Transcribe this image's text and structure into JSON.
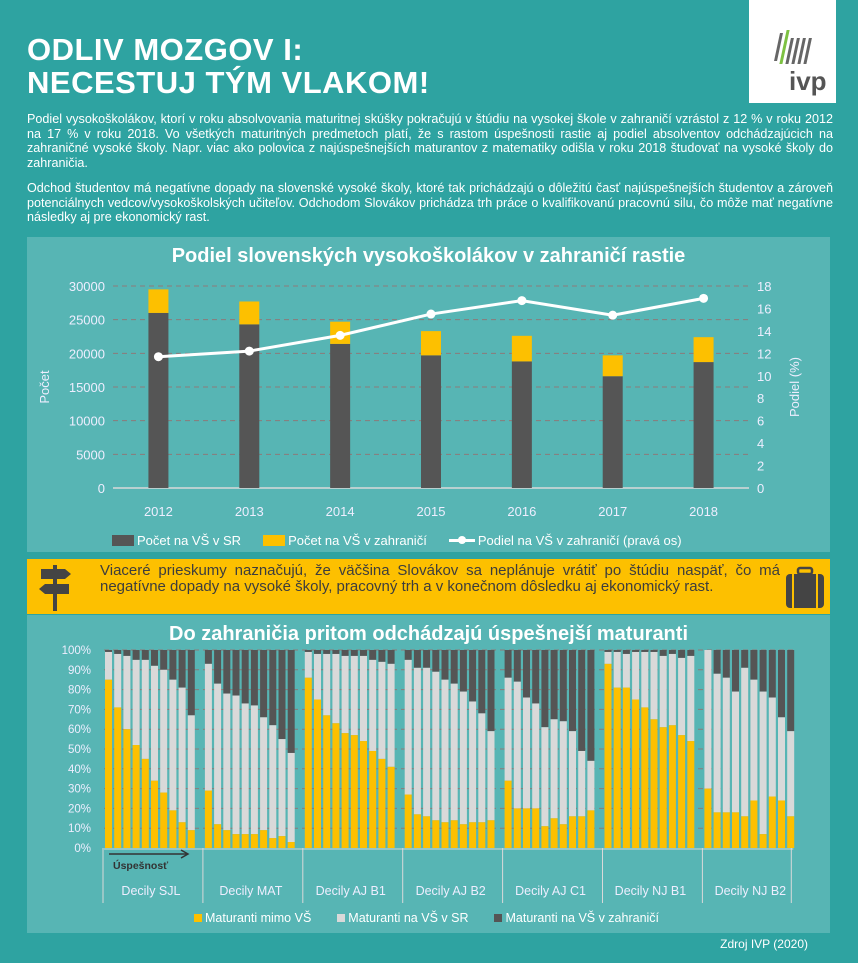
{
  "header": {
    "title_line1": "ODLIV MOZGOV I:",
    "title_line2": "NECESTUJ TÝM VLAKOM!",
    "logo_text": "ivp"
  },
  "intro": {
    "paragraph1": "Podiel vysokoškolákov, ktorí v roku absolvovania maturitnej skúšky pokračujú v štúdiu na vysokej škole v zahraničí vzrástol z 12 % v roku 2012 na 17 % v roku 2018. Vo všetkých maturitných predmetoch platí, že s rastom úspešnosti rastie aj podiel absolventov odchádzajúcich na zahraničné vysoké školy. Napr. viac ako polovica z najúspešnejších maturantov z matematiky odišla v roku 2018 študovať na vysoké školy do zahraničia.",
    "paragraph2": "Odchod študentov má negatívne dopady na slovenské vysoké školy, ktoré tak prichádzajú o dôležitú časť najúspešnejších študentov a zároveň potenciálnych vedcov/vysokoškolských učiteľov. Odchodom Slovákov prichádza trh práce o kvalifikovanú pracovnú silu, čo môže mať negatívne následky aj pre ekonomický rast."
  },
  "banner": {
    "text": "Viaceré prieskumy naznačujú, že väčšina Slovákov sa neplánuje vrátiť po štúdiu naspäť, čo má negatívne dopady na vysoké školy, pracovný trh a v konečnom dôsledku aj ekonomický rast."
  },
  "source": "Zdroj IVP (2020)",
  "colors": {
    "background": "#2ea3a1",
    "panel": "#57b5b4",
    "yellow": "#fdc000",
    "dark": "#555555",
    "light": "#d9d9d9",
    "grid": "#8c7a7a"
  },
  "chart_data": [
    {
      "type": "bar",
      "title": "Podiel slovenských vysokoškolákov v zahraničí rastie",
      "categories": [
        "2012",
        "2013",
        "2014",
        "2015",
        "2016",
        "2017",
        "2018"
      ],
      "ylabel": "Počet",
      "y2label": "Podiel (%)",
      "ylim": [
        0,
        30000
      ],
      "y2lim": [
        0,
        18
      ],
      "yticks": [
        "0",
        "5000",
        "10000",
        "15000",
        "20000",
        "25000",
        "30000"
      ],
      "y2ticks": [
        "0",
        "2",
        "4",
        "6",
        "8",
        "10",
        "12",
        "14",
        "16",
        "18"
      ],
      "grid": true,
      "legend_position": "bottom",
      "series": [
        {
          "name": "Počet na VŠ v SR",
          "kind": "stacked-bar",
          "values": [
            26000,
            24300,
            21400,
            19700,
            18800,
            16600,
            18700
          ]
        },
        {
          "name": "Počet na VŠ v zahraničí",
          "kind": "stacked-bar",
          "values": [
            3500,
            3400,
            3300,
            3600,
            3800,
            3100,
            3700
          ]
        },
        {
          "name": "Podiel na VŠ v zahraničí (pravá os)",
          "kind": "line",
          "axis": "right",
          "values": [
            11.7,
            12.2,
            13.6,
            15.5,
            16.7,
            15.4,
            16.9
          ]
        }
      ]
    },
    {
      "type": "bar",
      "title": "Do zahraničia pritom odchádzajú úspešnejší maturanti",
      "stacked_percent": true,
      "ylim": [
        0,
        100
      ],
      "yticks": [
        "0%",
        "10%",
        "20%",
        "30%",
        "40%",
        "50%",
        "60%",
        "70%",
        "80%",
        "90%",
        "100%"
      ],
      "arrow_label": "Úspešnosť",
      "grid": true,
      "legend_position": "bottom",
      "legend": [
        "Maturanti mimo VŠ",
        "Maturanti na VŠ v SR",
        "Maturanti na VŠ v zahraničí"
      ],
      "groups": [
        {
          "label": "Decily SJL",
          "mimo_vs": [
            85,
            71,
            60,
            52,
            45,
            34,
            28,
            19,
            13,
            9
          ],
          "vs_sr": [
            14,
            27,
            37,
            43,
            50,
            58,
            62,
            66,
            68,
            58
          ]
        },
        {
          "label": "Decily MAT",
          "mimo_vs": [
            29,
            12,
            9,
            7,
            7,
            7,
            9,
            5,
            6,
            3
          ],
          "vs_sr": [
            64,
            71,
            69,
            70,
            66,
            65,
            57,
            57,
            49,
            45
          ]
        },
        {
          "label": "Decily AJ B1",
          "mimo_vs": [
            86,
            75,
            67,
            63,
            58,
            57,
            54,
            49,
            45,
            41
          ],
          "vs_sr": [
            13,
            23,
            31,
            35,
            39,
            40,
            43,
            46,
            49,
            52
          ]
        },
        {
          "label": "Decily AJ B2",
          "mimo_vs": [
            27,
            17,
            16,
            14,
            13,
            14,
            12,
            13,
            13,
            14
          ],
          "vs_sr": [
            68,
            74,
            75,
            75,
            72,
            69,
            67,
            61,
            55,
            45
          ]
        },
        {
          "label": "Decily AJ C1",
          "mimo_vs": [
            34,
            20,
            20,
            20,
            11,
            15,
            12,
            16,
            16,
            19
          ],
          "vs_sr": [
            52,
            64,
            56,
            53,
            50,
            50,
            52,
            43,
            33,
            25
          ]
        },
        {
          "label": "Decily NJ B1",
          "mimo_vs": [
            93,
            81,
            81,
            75,
            71,
            65,
            61,
            62,
            57,
            54
          ],
          "vs_sr": [
            6,
            18,
            17,
            24,
            28,
            34,
            36,
            36,
            39,
            43
          ]
        },
        {
          "label": "Decily NJ B2",
          "mimo_vs": [
            30,
            18,
            18,
            18,
            16,
            24,
            7,
            26,
            24,
            16
          ],
          "vs_sr": [
            70,
            70,
            68,
            61,
            75,
            61,
            72,
            50,
            42,
            43
          ]
        }
      ]
    }
  ]
}
